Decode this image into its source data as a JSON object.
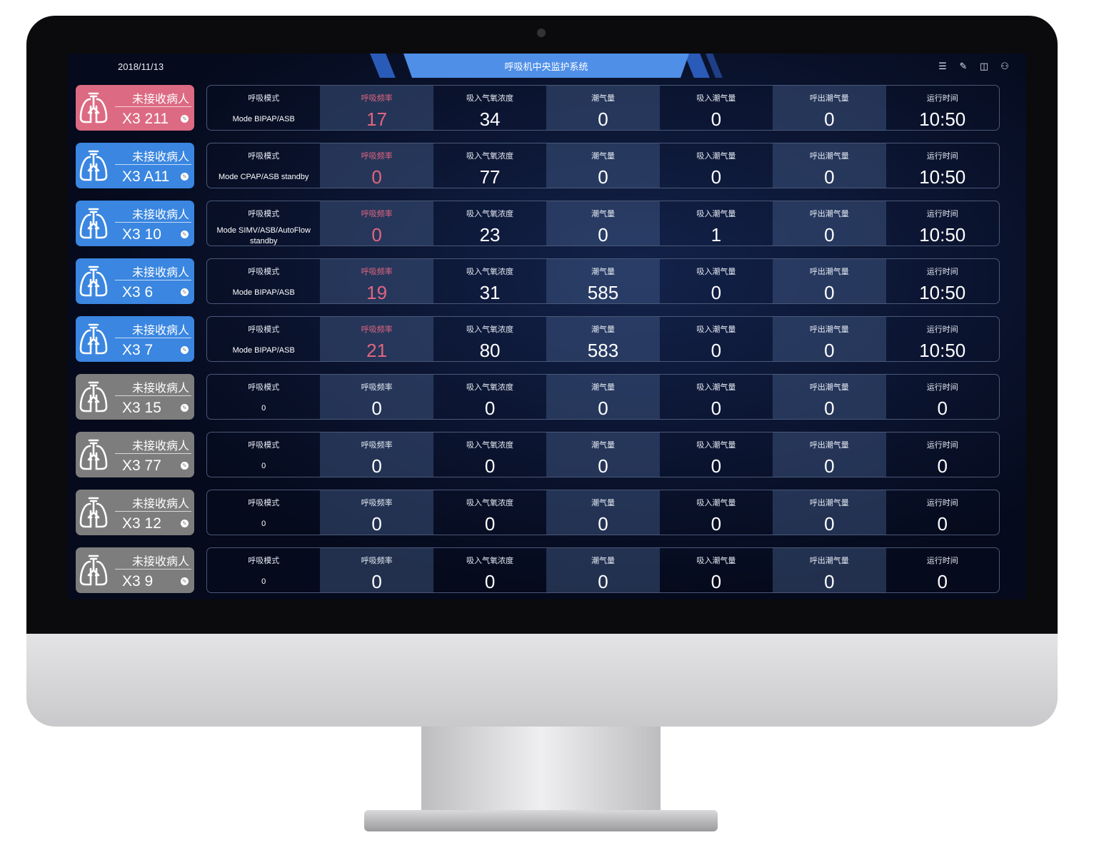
{
  "header": {
    "date": "2018/11/13",
    "title": "呼吸机中央监护系统",
    "icons": [
      "list-icon",
      "edit-icon",
      "layout-icon",
      "user-icon"
    ]
  },
  "labels": {
    "mode": "呼吸模式",
    "freq": "呼吸频率",
    "o2": "吸入气氧浓度",
    "tidal": "潮气量",
    "insp": "吸入潮气量",
    "exp": "呼出潮气量",
    "runtime": "运行时间"
  },
  "colors": {
    "pink": "#dc6a82",
    "blue": "#3a86e0",
    "gray": "#7d7d7d"
  },
  "rows": [
    {
      "status": "未接收病人",
      "bed": "X3 211",
      "color": "pink",
      "mode": "Mode BIPAP/ASB",
      "freq": "17",
      "o2": "34",
      "tidal": "0",
      "insp": "0",
      "exp": "0",
      "runtime": "10:50"
    },
    {
      "status": "未接收病人",
      "bed": "X3 A11",
      "color": "blue",
      "mode": "Mode CPAP/ASB standby",
      "freq": "0",
      "o2": "77",
      "tidal": "0",
      "insp": "0",
      "exp": "0",
      "runtime": "10:50"
    },
    {
      "status": "未接收病人",
      "bed": "X3 10",
      "color": "blue",
      "mode": "Mode SIMV/ASB/AutoFlow standby",
      "freq": "0",
      "o2": "23",
      "tidal": "0",
      "insp": "1",
      "exp": "0",
      "runtime": "10:50"
    },
    {
      "status": "未接收病人",
      "bed": "X3 6",
      "color": "blue",
      "mode": "Mode BIPAP/ASB",
      "freq": "19",
      "o2": "31",
      "tidal": "585",
      "insp": "0",
      "exp": "0",
      "runtime": "10:50"
    },
    {
      "status": "未接收病人",
      "bed": "X3 7",
      "color": "blue",
      "mode": "Mode BIPAP/ASB",
      "freq": "21",
      "o2": "80",
      "tidal": "583",
      "insp": "0",
      "exp": "0",
      "runtime": "10:50"
    },
    {
      "status": "未接收病人",
      "bed": "X3 15",
      "color": "gray",
      "mode": "0",
      "freq": "0",
      "o2": "0",
      "tidal": "0",
      "insp": "0",
      "exp": "0",
      "runtime": "0"
    },
    {
      "status": "未接收病人",
      "bed": "X3 77",
      "color": "gray",
      "mode": "0",
      "freq": "0",
      "o2": "0",
      "tidal": "0",
      "insp": "0",
      "exp": "0",
      "runtime": "0"
    },
    {
      "status": "未接收病人",
      "bed": "X3 12",
      "color": "gray",
      "mode": "0",
      "freq": "0",
      "o2": "0",
      "tidal": "0",
      "insp": "0",
      "exp": "0",
      "runtime": "0"
    },
    {
      "status": "未接收病人",
      "bed": "X3 9",
      "color": "gray",
      "mode": "0",
      "freq": "0",
      "o2": "0",
      "tidal": "0",
      "insp": "0",
      "exp": "0",
      "runtime": "0"
    }
  ]
}
